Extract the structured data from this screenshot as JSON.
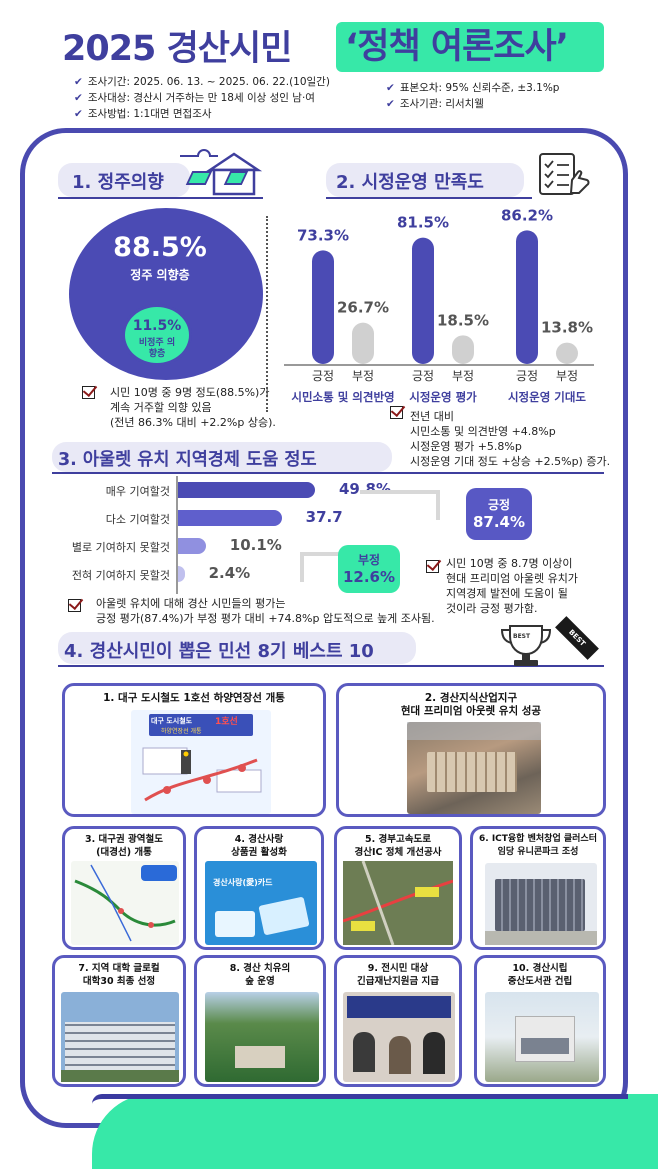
{
  "header": {
    "title_main": "2025 경산시민",
    "title_highlight": "‘정책 여론조사’",
    "meta_left": [
      "조사기간: 2025. 06. 13. ~ 2025. 06. 22.(10일간)",
      "조사대상: 경산시 거주하는 만 18세 이상 성인 남·여",
      "조사방법: 1:1대면 면접조사"
    ],
    "meta_right": [
      "표본오차: 95% 신뢰수준, ±3.1%p",
      "조사기관: 리서치웰"
    ]
  },
  "section1": {
    "title": "1. 정주의향",
    "settle_pct": "88.5%",
    "settle_label": "정주 의향층",
    "nonsettle_pct": "11.5%",
    "nonsettle_label": "비정주 의향층",
    "note_lines": [
      "시민 10명 중 9명 정도(88.5%)가",
      "계속 거주할 의향 있음",
      "(전년 86.3% 대비 +2.2%p 상승)."
    ]
  },
  "section2": {
    "title": "2. 시정운영 만족도",
    "pos_label": "긍정",
    "neg_label": "부정",
    "groups": [
      {
        "name": "시민소통 및 의견반영",
        "positive": 73.3,
        "negative": 26.7,
        "positive_text": "73.3%",
        "negative_text": "26.7%"
      },
      {
        "name": "시정운영 평가",
        "positive": 81.5,
        "negative": 18.5,
        "positive_text": "81.5%",
        "negative_text": "18.5%"
      },
      {
        "name": "시정운영 기대도",
        "positive": 86.2,
        "negative": 13.8,
        "positive_text": "86.2%",
        "negative_text": "13.8%"
      }
    ],
    "note_lines": [
      "전년 대비",
      "시민소통 및 의견반영 +4.8%p",
      "시정운영 평가 +5.8%p",
      "시정운영 기대 정도 +상승 +2.5%p) 증가."
    ]
  },
  "section3": {
    "title": "3. 아울렛 유치 지역경제 도움 정도",
    "bars": [
      {
        "label": "매우 기여할것",
        "value": 49.8,
        "text": "49.8%"
      },
      {
        "label": "다소 기여할것",
        "value": 37.7,
        "text": "37.7"
      },
      {
        "label": "별로 기여하지 못할것",
        "value": 10.1,
        "text": "10.1%"
      },
      {
        "label": "전혀 기여하지 못할것",
        "value": 2.4,
        "text": "2.4%"
      }
    ],
    "positive_badge": {
      "label": "긍정",
      "value": "87.4%"
    },
    "negative_badge": {
      "label": "부정",
      "value": "12.6%"
    },
    "note_right": [
      "시민 10명 중 8.7명 이상이",
      "현대 프리미엄 아울렛 유치가",
      "지역경제 발전에 도움이 될",
      "것이라 긍정 평가함."
    ],
    "note_bottom": [
      "아울렛 유치에 대해 경산 시민들의 평가는",
      "긍정 평가(87.4%)가 부정 평가 대비 +74.8%p 압도적으로 높게 조사됨."
    ]
  },
  "section4": {
    "title": "4. 경산시민이 뽑은 민선 8기 베스트 10",
    "trophy_label": "BEST",
    "ribbon_label": "BEST",
    "items": [
      {
        "title": "1. 대구 도시철도 1호선 하양연장선 개통",
        "pic_texts": [
          "대구 도시철도",
          "1호선",
          "하양연장선 개통"
        ]
      },
      {
        "title": "2. 경산지식산업지구\n현대 프리미엄 아웃렛 유치 성공"
      },
      {
        "title": "3. 대구권 광역철도\n(대경선) 개통"
      },
      {
        "title": "4. 경산사랑\n상품권 활성화",
        "pic_text": "경산사랑(愛)카드"
      },
      {
        "title": "5. 경부고속도로\n경산IC 정체 개선공사"
      },
      {
        "title": "6. ICT융합 벤처창업 클러스터\n임당 유니콘파크 조성"
      },
      {
        "title": "7. 지역 대학 글로컬\n대학30 최종 선정"
      },
      {
        "title": "8. 경산 치유의\n숲 운영"
      },
      {
        "title": "9. 전시민 대상\n긴급재난지원금 지급"
      },
      {
        "title": "10. 경산시립\n중산도서관 건립"
      }
    ]
  },
  "colors": {
    "primary": "#4b4bb4",
    "accent_green": "#37e8a8",
    "negative_gray": "#d0d0d0",
    "frame": "#4a4ab0"
  }
}
